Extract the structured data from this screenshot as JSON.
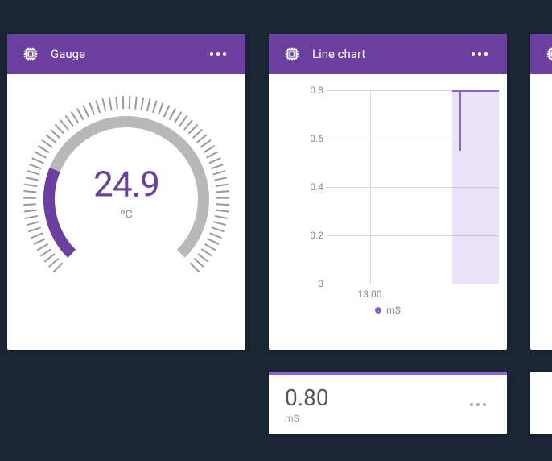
{
  "colors": {
    "page_bg": "#1a2634",
    "header_bg": "#6a3fa0",
    "accent": "#8a63d2",
    "gauge_fill": "#6a3fa0",
    "gauge_track": "#b8b8b8",
    "tick_color": "#9a9a9a",
    "grid": "#d8d8d8",
    "text_muted": "#888888",
    "value_text": "#555555",
    "area_fill": "rgba(138,99,210,0.18)"
  },
  "gauge": {
    "title": "Gauge",
    "value": "24.9",
    "unit": "ºC",
    "min": 0,
    "max": 100,
    "fraction": 0.249,
    "start_angle_deg": 225,
    "end_angle_deg": -45,
    "tick_count": 72,
    "arc_stroke_width": 14,
    "tick_outer_r": 128,
    "tick_inner_r": 112,
    "arc_radius": 96
  },
  "line": {
    "title": "Line chart",
    "y_ticks": [
      0,
      0.2,
      0.4,
      0.6,
      0.8
    ],
    "ylim": [
      0,
      0.8
    ],
    "x_ticks": [
      {
        "label": "13:00",
        "pos": 0.25
      }
    ],
    "series": {
      "label": "mS",
      "color": "#8a63d2",
      "data_start_x": 0.73,
      "data_end_x": 1.0,
      "level": 0.8,
      "spike_x": 0.77,
      "spike_low": 0.55
    },
    "legend_color": "#b19cd9"
  },
  "valuecard": {
    "value": "0.80",
    "unit": "mS"
  }
}
